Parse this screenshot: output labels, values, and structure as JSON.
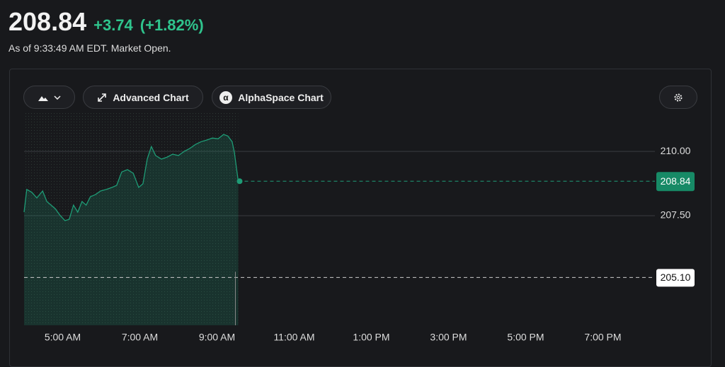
{
  "header": {
    "price": "208.84",
    "change": "+3.74",
    "change_pct": "(+1.82%)",
    "as_of": "As of 9:33:49 AM EDT. Market Open."
  },
  "toolbar": {
    "advanced": "Advanced Chart",
    "alphaspace": "AlphaSpace Chart"
  },
  "chart_data": {
    "type": "line",
    "color": "#1e9c76",
    "x": [
      4.0,
      4.07,
      4.2,
      4.33,
      4.48,
      4.59,
      4.7,
      4.81,
      4.94,
      5.06,
      5.17,
      5.28,
      5.39,
      5.5,
      5.61,
      5.72,
      5.85,
      5.98,
      6.13,
      6.28,
      6.4,
      6.53,
      6.68,
      6.83,
      6.97,
      7.08,
      7.19,
      7.3,
      7.41,
      7.56,
      7.71,
      7.85,
      8.0,
      8.15,
      8.29,
      8.44,
      8.59,
      8.73,
      8.88,
      9.03,
      9.17,
      9.28,
      9.39,
      9.45,
      9.55
    ],
    "values": [
      207.64,
      208.52,
      208.41,
      208.19,
      208.46,
      208.05,
      207.91,
      207.77,
      207.5,
      207.31,
      207.36,
      207.91,
      207.64,
      208.05,
      207.91,
      208.24,
      208.32,
      208.46,
      208.52,
      208.6,
      208.68,
      209.2,
      209.29,
      209.15,
      208.6,
      208.74,
      209.7,
      210.19,
      209.84,
      209.7,
      209.78,
      209.89,
      209.84,
      210.0,
      210.11,
      210.27,
      210.38,
      210.44,
      210.52,
      210.49,
      210.66,
      210.6,
      210.38,
      209.97,
      208.84
    ],
    "xlim": [
      4,
      20
    ],
    "ylim": [
      203.24,
      211.57
    ],
    "xticks": [
      {
        "value": 5,
        "label": "5:00 AM"
      },
      {
        "value": 7,
        "label": "7:00 AM"
      },
      {
        "value": 9,
        "label": "9:00 AM"
      },
      {
        "value": 11,
        "label": "11:00 AM"
      },
      {
        "value": 13,
        "label": "1:00 PM"
      },
      {
        "value": 15,
        "label": "3:00 PM"
      },
      {
        "value": 17,
        "label": "5:00 PM"
      },
      {
        "value": 19,
        "label": "7:00 PM"
      }
    ],
    "yticks": [
      {
        "value": 210,
        "label": "210.00"
      },
      {
        "value": 207.5,
        "label": "207.50"
      }
    ],
    "last_price": 208.84,
    "previous_close": {
      "value": 205.1,
      "label": "205.10"
    }
  }
}
